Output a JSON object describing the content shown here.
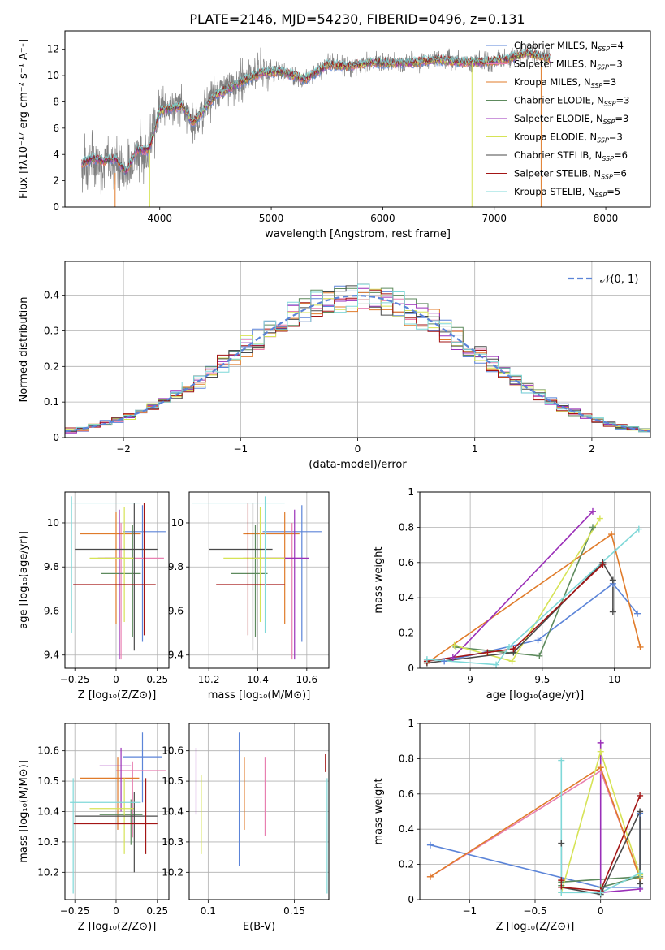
{
  "figure_title": "PLATE=2146, MJD=54230, FIBERID=0496, z=0.131",
  "models": [
    {
      "name": "Chabrier MILES",
      "nssp": "4",
      "color": "#5b84d8"
    },
    {
      "name": "Salpeter MILES",
      "nssp": "3",
      "color": "#e87fb0"
    },
    {
      "name": "Kroupa MILES",
      "nssp": "3",
      "color": "#e07b2a"
    },
    {
      "name": "Chabrier ELODIE",
      "nssp": "3",
      "color": "#5d8a5d"
    },
    {
      "name": "Salpeter ELODIE",
      "nssp": "3",
      "color": "#9a2fb8"
    },
    {
      "name": "Kroupa ELODIE",
      "nssp": "3",
      "color": "#d6e356"
    },
    {
      "name": "Chabrier STELIB",
      "nssp": "6",
      "color": "#4a4a4a"
    },
    {
      "name": "Salpeter STELIB",
      "nssp": "6",
      "color": "#a31515"
    },
    {
      "name": "Kroupa STELIB",
      "nssp": "5",
      "color": "#7fd8d8"
    }
  ],
  "chart_data": [
    {
      "id": "spectrum",
      "type": "line",
      "xlabel": "wavelength [Angstrom, rest frame]",
      "ylabel": "Flux [fλ10⁻¹⁷ erg cm⁻² s⁻¹ A⁻¹]",
      "xlim": [
        3150,
        8400
      ],
      "ylim": [
        0,
        13.4
      ],
      "xticks": [
        4000,
        5000,
        6000,
        7000,
        8000
      ],
      "yticks": [
        0,
        2,
        4,
        6,
        8,
        10,
        12
      ],
      "grid": false,
      "legend": "upper-right",
      "data_series": {
        "name": "data",
        "color": "#808080",
        "x": [
          3300,
          3400,
          3500,
          3600,
          3700,
          3800,
          3900,
          4000,
          4100,
          4200,
          4300,
          4500,
          4700,
          4900,
          5100,
          5300,
          5500,
          5700,
          5900,
          6100,
          6300,
          6500,
          6700,
          6900,
          7100,
          7300,
          7500
        ],
        "y": [
          3.2,
          3.7,
          3.4,
          3.6,
          2.5,
          4.4,
          4.2,
          7.5,
          7.6,
          7.8,
          6.2,
          8.6,
          9.5,
          10.4,
          10.3,
          9.6,
          10.9,
          10.7,
          11.1,
          11.0,
          11.0,
          11.3,
          11.1,
          11.0,
          11.3,
          11.8,
          11.3
        ]
      },
      "model_curve": {
        "x": [
          3300,
          3400,
          3500,
          3600,
          3700,
          3800,
          3900,
          4000,
          4100,
          4200,
          4300,
          4500,
          4700,
          4900,
          5100,
          5300,
          5500,
          5700,
          5900,
          6100,
          6300,
          6500,
          6700,
          6900,
          7100,
          7300,
          7500
        ],
        "y": [
          3.3,
          3.7,
          3.5,
          3.7,
          2.7,
          4.4,
          4.3,
          7.3,
          7.5,
          7.7,
          6.4,
          8.5,
          9.4,
          10.2,
          10.3,
          9.7,
          10.8,
          10.7,
          11.0,
          10.9,
          11.0,
          11.2,
          11.0,
          11.0,
          11.2,
          11.7,
          11.2
        ]
      }
    },
    {
      "id": "residuals",
      "type": "step",
      "xlabel": "(data-model)/error",
      "ylabel": "Normed distribution",
      "xlim": [
        -2.5,
        2.5
      ],
      "ylim": [
        0,
        0.495
      ],
      "xticks": [
        -2,
        -1,
        0,
        1,
        2
      ],
      "yticks": [
        0.0,
        0.1,
        0.2,
        0.3,
        0.4
      ],
      "grid": true,
      "legend": "upper-right",
      "gauss_label": "𝒩(0, 1)",
      "gauss_color": "#5b84d8",
      "bin_width": 0.1
    },
    {
      "id": "age-vs-Z",
      "type": "errorbar",
      "xlabel": "Z [log₁₀(Z/Z⊙)]",
      "ylabel": "age  [log₁₀(age/yr)]",
      "xlim": [
        -0.31,
        0.32
      ],
      "ylim": [
        9.34,
        10.14
      ],
      "xticks": [
        -0.25,
        0.0,
        0.25
      ],
      "yticks": [
        9.4,
        9.6,
        9.8,
        10.0
      ],
      "points": [
        {
          "m": 0,
          "x": 0.16,
          "xerr": [
            0.12,
            0.14
          ],
          "y": 9.96,
          "yerr": [
            0.5,
            0.12
          ]
        },
        {
          "m": 1,
          "x": 0.03,
          "xerr": [
            0.1,
            0.26
          ],
          "y": 9.84,
          "yerr": [
            0.46,
            0.16
          ]
        },
        {
          "m": 2,
          "x": 0.0,
          "xerr": [
            0.22,
            0.15
          ],
          "y": 9.95,
          "yerr": [
            0.41,
            0.1
          ]
        },
        {
          "m": 3,
          "x": 0.1,
          "xerr": [
            0.19,
            0.05
          ],
          "y": 9.77,
          "yerr": [
            0.29,
            0.22
          ]
        },
        {
          "m": 4,
          "x": 0.02,
          "xerr": [
            0.13,
            0.02
          ],
          "y": 9.84,
          "yerr": [
            0.46,
            0.22
          ]
        },
        {
          "m": 5,
          "x": 0.05,
          "xerr": [
            0.21,
            0.06
          ],
          "y": 9.84,
          "yerr": [
            0.29,
            0.23
          ]
        },
        {
          "m": 6,
          "x": 0.11,
          "xerr": [
            0.36,
            0.14
          ],
          "y": 9.88,
          "yerr": [
            0.46,
            0.21
          ]
        },
        {
          "m": 7,
          "x": 0.17,
          "xerr": [
            0.43,
            0.07
          ],
          "y": 9.72,
          "yerr": [
            0.23,
            0.37
          ]
        },
        {
          "m": 8,
          "x": -0.27,
          "xerr": [
            0.0,
            0.42
          ],
          "y": 10.09,
          "yerr": [
            0.59,
            0.03
          ]
        }
      ]
    },
    {
      "id": "age-vs-mass",
      "type": "errorbar",
      "xlabel": "mass [log₁₀(M/M⊙)]",
      "ylabel": "",
      "xlim": [
        10.12,
        10.69
      ],
      "ylim": [
        9.34,
        10.14
      ],
      "xticks": [
        10.2,
        10.4,
        10.6
      ],
      "yticks": [
        9.4,
        9.6,
        9.8,
        10.0
      ],
      "points": [
        {
          "m": 0,
          "x": 10.58,
          "xerr": [
            0.16,
            0.08
          ],
          "y": 9.96,
          "yerr": [
            0.5,
            0.12
          ]
        },
        {
          "m": 1,
          "x": 10.54,
          "xerr": [
            0.2,
            0.04
          ],
          "y": 9.84,
          "yerr": [
            0.46,
            0.16
          ]
        },
        {
          "m": 2,
          "x": 10.51,
          "xerr": [
            0.17,
            0.06
          ],
          "y": 9.95,
          "yerr": [
            0.41,
            0.1
          ]
        },
        {
          "m": 3,
          "x": 10.39,
          "xerr": [
            0.1,
            0.05
          ],
          "y": 9.77,
          "yerr": [
            0.29,
            0.22
          ]
        },
        {
          "m": 4,
          "x": 10.55,
          "xerr": [
            0.15,
            0.06
          ],
          "y": 9.84,
          "yerr": [
            0.46,
            0.22
          ]
        },
        {
          "m": 5,
          "x": 10.41,
          "xerr": [
            0.15,
            0.1
          ],
          "y": 9.84,
          "yerr": [
            0.29,
            0.23
          ]
        },
        {
          "m": 6,
          "x": 10.38,
          "xerr": [
            0.18,
            0.08
          ],
          "y": 9.88,
          "yerr": [
            0.46,
            0.21
          ]
        },
        {
          "m": 7,
          "x": 10.36,
          "xerr": [
            0.13,
            0.15
          ],
          "y": 9.72,
          "yerr": [
            0.23,
            0.37
          ]
        },
        {
          "m": 8,
          "x": 10.43,
          "xerr": [
            0.3,
            0.08
          ],
          "y": 10.09,
          "yerr": [
            0.59,
            0.03
          ]
        }
      ]
    },
    {
      "id": "mass-weight-vs-age",
      "type": "line",
      "xlabel": "age  [log₁₀(age/yr)]",
      "ylabel": "mass weight",
      "xlim": [
        8.65,
        10.25
      ],
      "ylim": [
        0,
        1.0
      ],
      "xticks": [
        9.0,
        9.5,
        10.0
      ],
      "yticks": [
        0.0,
        0.2,
        0.4,
        0.6,
        0.8,
        1.0
      ],
      "series": [
        {
          "m": 0,
          "x": [
            8.82,
            9.47,
            9.99,
            10.16
          ],
          "y": [
            0.04,
            0.16,
            0.48,
            0.31
          ]
        },
        {
          "m": 1,
          "x": 8.93,
          "y": 0
        },
        {
          "m": 2,
          "x": [
            8.7,
            9.98,
            10.18
          ],
          "y": [
            0.03,
            0.76,
            0.12
          ]
        },
        {
          "m": 3,
          "x": [
            8.9,
            9.48,
            9.85
          ],
          "y": [
            0.12,
            0.07,
            0.8
          ]
        },
        {
          "m": 4,
          "x": [
            8.88,
            9.85
          ],
          "y": [
            0.06,
            0.89
          ]
        },
        {
          "m": 5,
          "x": [
            8.89,
            9.29,
            9.9
          ],
          "y": [
            0.13,
            0.04,
            0.85
          ]
        },
        {
          "m": 6,
          "x": [
            8.7,
            9.3,
            9.92,
            9.99,
            9.99
          ],
          "y": [
            0.03,
            0.09,
            0.6,
            0.5,
            0.32
          ]
        },
        {
          "m": 7,
          "x": [
            8.7,
            9.12,
            9.3,
            9.92
          ],
          "y": [
            0.04,
            0.09,
            0.11,
            0.59
          ]
        },
        {
          "m": 8,
          "x": [
            8.7,
            9.18,
            9.27,
            10.17
          ],
          "y": [
            0.05,
            0.02,
            0.12,
            0.79
          ]
        }
      ]
    },
    {
      "id": "mass-vs-Z",
      "type": "errorbar",
      "xlabel": "Z [log₁₀(Z/Z⊙)]",
      "ylabel": "mass [log₁₀(M/M⊙)]",
      "xlim": [
        -0.31,
        0.32
      ],
      "ylim": [
        10.11,
        10.69
      ],
      "xticks": [
        -0.25,
        0.0,
        0.25
      ],
      "yticks": [
        10.2,
        10.3,
        10.4,
        10.5,
        10.6
      ],
      "points": [
        {
          "m": 0,
          "x": 0.16,
          "xerr": [
            0.12,
            0.12
          ],
          "y": 10.58,
          "yerr": [
            0.15,
            0.08
          ]
        },
        {
          "m": 1,
          "x": 0.1,
          "xerr": [
            0.1,
            0.2
          ],
          "y": 10.535,
          "yerr": [
            0.22,
            0.03
          ]
        },
        {
          "m": 2,
          "x": 0.01,
          "xerr": [
            0.23,
            0.13
          ],
          "y": 10.51,
          "yerr": [
            0.17,
            0.07
          ]
        },
        {
          "m": 3,
          "x": 0.09,
          "xerr": [
            0.19,
            0.07
          ],
          "y": 10.39,
          "yerr": [
            0.1,
            0.05
          ]
        },
        {
          "m": 4,
          "x": 0.03,
          "xerr": [
            0.13,
            0.06
          ],
          "y": 10.55,
          "yerr": [
            0.15,
            0.06
          ]
        },
        {
          "m": 5,
          "x": 0.05,
          "xerr": [
            0.21,
            0.06
          ],
          "y": 10.41,
          "yerr": [
            0.15,
            0.1
          ]
        },
        {
          "m": 6,
          "x": 0.11,
          "xerr": [
            0.36,
            0.14
          ],
          "y": 10.385,
          "yerr": [
            0.185,
            0.08
          ]
        },
        {
          "m": 7,
          "x": 0.18,
          "xerr": [
            0.44,
            0.07
          ],
          "y": 10.36,
          "yerr": [
            0.1,
            0.15
          ]
        },
        {
          "m": 8,
          "x": -0.26,
          "xerr": [
            0.02,
            0.41
          ],
          "y": 10.43,
          "yerr": [
            0.3,
            0.08
          ]
        }
      ]
    },
    {
      "id": "mass-vs-EBV",
      "type": "errorbar",
      "xlabel": "E(B-V)",
      "ylabel": "",
      "xlim": [
        0.089,
        0.17
      ],
      "ylim": [
        10.11,
        10.69
      ],
      "xticks": [
        0.1,
        0.15
      ],
      "yticks": [
        10.2,
        10.3,
        10.4,
        10.5,
        10.6
      ],
      "points": [
        {
          "m": 0,
          "x": 0.118,
          "y": 10.44,
          "yerr": [
            0.22,
            0.22
          ]
        },
        {
          "m": 1,
          "x": 0.133,
          "y": 10.45,
          "yerr": [
            0.13,
            0.13
          ]
        },
        {
          "m": 2,
          "x": 0.121,
          "y": 10.46,
          "yerr": [
            0.12,
            0.12
          ]
        },
        {
          "m": 4,
          "x": 0.093,
          "y": 10.5,
          "yerr": [
            0.11,
            0.11
          ]
        },
        {
          "m": 5,
          "x": 0.096,
          "y": 10.39,
          "yerr": [
            0.13,
            0.13
          ]
        },
        {
          "m": 7,
          "x": 0.168,
          "y": 10.56,
          "yerr": [
            0.03,
            0.03
          ]
        },
        {
          "m": 8,
          "x": 0.169,
          "y": 10.32,
          "yerr": [
            0.19,
            0.19
          ]
        }
      ]
    },
    {
      "id": "mass-weight-vs-Z",
      "type": "line",
      "xlabel": "Z [log₁₀(Z/Z⊙)]",
      "ylabel": "mass weight",
      "xlim": [
        -1.38,
        0.38
      ],
      "ylim": [
        0,
        1.0
      ],
      "xticks": [
        -1.0,
        -0.5,
        0.0
      ],
      "yticks": [
        0.0,
        0.2,
        0.4,
        0.6,
        0.8,
        1.0
      ],
      "series": [
        {
          "m": 0,
          "x": [
            -1.3,
            0.0,
            0.3,
            0.3
          ],
          "y": [
            0.31,
            0.07,
            0.07,
            0.49
          ]
        },
        {
          "m": 1,
          "x": [
            -1.3,
            0.0,
            0.3
          ],
          "y": [
            0.13,
            0.73,
            0.13
          ]
        },
        {
          "m": 2,
          "x": [
            -1.3,
            0.0,
            0.3
          ],
          "y": [
            0.13,
            0.75,
            0.12
          ]
        },
        {
          "m": 3,
          "x": [
            0.0,
            0.3,
            -0.3,
            -0.3
          ],
          "y": [
            0.07,
            0.13,
            0.1,
            0.08
          ]
        },
        {
          "m": 4,
          "x": [
            0.0,
            0.0,
            0.3
          ],
          "y": [
            0.89,
            0.04,
            0.06
          ]
        },
        {
          "m": 5,
          "x": [
            -0.3,
            0.0,
            0.3
          ],
          "y": [
            0.04,
            0.84,
            0.14
          ]
        },
        {
          "m": 6,
          "x": [
            -0.3,
            -0.3,
            0.0,
            0.3,
            0.3
          ],
          "y": [
            0.32,
            0.07,
            0.03,
            0.5,
            0.09
          ]
        },
        {
          "m": 7,
          "x": [
            -0.3,
            -0.3,
            0.0,
            0.3
          ],
          "y": [
            0.11,
            0.07,
            0.05,
            0.59
          ]
        },
        {
          "m": 8,
          "x": [
            -0.3,
            -0.3,
            0.0,
            0.3
          ],
          "y": [
            0.79,
            0.04,
            0.04,
            0.15
          ]
        }
      ]
    }
  ]
}
